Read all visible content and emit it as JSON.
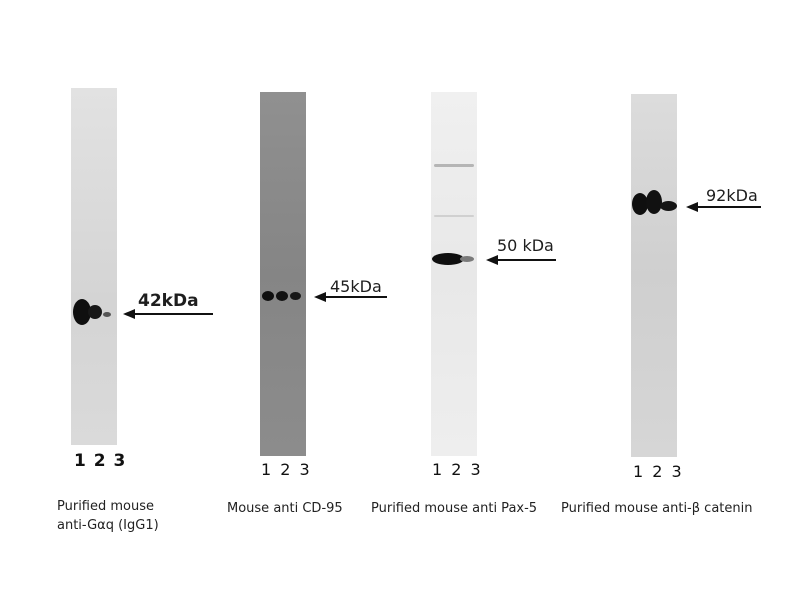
{
  "blots": [
    {
      "id": "gaq",
      "marker": "42kDa",
      "lanes": "1 2 3",
      "caption_line1": "Purified mouse",
      "caption_line2": "anti-Gαq (IgG1)"
    },
    {
      "id": "cd95",
      "marker": "45kDa",
      "lanes": "1 2 3",
      "caption_line1": "Mouse anti CD-95"
    },
    {
      "id": "pax5",
      "marker": "50 kDa",
      "lanes": "1 2 3",
      "caption_line1": "Purified mouse anti Pax-5"
    },
    {
      "id": "bcatenin",
      "marker": "92kDa",
      "lanes": "1 2 3",
      "caption_line1": "Purified mouse anti-β catenin"
    }
  ],
  "colors": {
    "strip_1": "#d8d8d8",
    "strip_2": "#8a8a8a",
    "strip_3": "#ececec",
    "strip_4": "#d4d4d4",
    "band": "#0f0f0f",
    "arrow": "#111111"
  }
}
